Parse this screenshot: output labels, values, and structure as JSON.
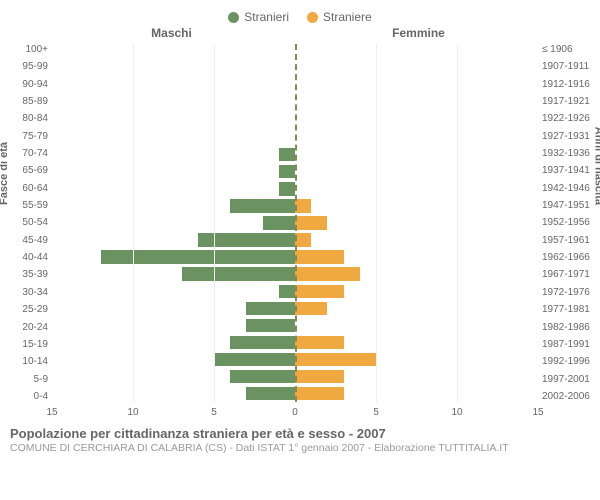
{
  "legend": {
    "male": {
      "label": "Stranieri",
      "color": "#6b9362"
    },
    "female": {
      "label": "Straniere",
      "color": "#f0a840"
    }
  },
  "header": {
    "male": "Maschi",
    "female": "Femmine"
  },
  "yaxis_left": {
    "title": "Fasce di età"
  },
  "yaxis_right": {
    "title": "Anni di nascita"
  },
  "xaxis": {
    "xlim": 15,
    "ticks": [
      15,
      10,
      5,
      0,
      5,
      10,
      15
    ]
  },
  "colors": {
    "male_bar": "#6b9362",
    "female_bar": "#f0a840",
    "grid": "#eeeeee",
    "centerline": "#888855",
    "text": "#666666",
    "subtext": "#999999",
    "bg": "#ffffff"
  },
  "age_bands": [
    {
      "age": "100+",
      "birth": "≤ 1906",
      "m": 0,
      "f": 0
    },
    {
      "age": "95-99",
      "birth": "1907-1911",
      "m": 0,
      "f": 0
    },
    {
      "age": "90-94",
      "birth": "1912-1916",
      "m": 0,
      "f": 0
    },
    {
      "age": "85-89",
      "birth": "1917-1921",
      "m": 0,
      "f": 0
    },
    {
      "age": "80-84",
      "birth": "1922-1926",
      "m": 0,
      "f": 0
    },
    {
      "age": "75-79",
      "birth": "1927-1931",
      "m": 0,
      "f": 0
    },
    {
      "age": "70-74",
      "birth": "1932-1936",
      "m": 1,
      "f": 0
    },
    {
      "age": "65-69",
      "birth": "1937-1941",
      "m": 1,
      "f": 0
    },
    {
      "age": "60-64",
      "birth": "1942-1946",
      "m": 1,
      "f": 0
    },
    {
      "age": "55-59",
      "birth": "1947-1951",
      "m": 4,
      "f": 1
    },
    {
      "age": "50-54",
      "birth": "1952-1956",
      "m": 2,
      "f": 2
    },
    {
      "age": "45-49",
      "birth": "1957-1961",
      "m": 6,
      "f": 1
    },
    {
      "age": "40-44",
      "birth": "1962-1966",
      "m": 12,
      "f": 3
    },
    {
      "age": "35-39",
      "birth": "1967-1971",
      "m": 7,
      "f": 4
    },
    {
      "age": "30-34",
      "birth": "1972-1976",
      "m": 1,
      "f": 3
    },
    {
      "age": "25-29",
      "birth": "1977-1981",
      "m": 3,
      "f": 2
    },
    {
      "age": "20-24",
      "birth": "1982-1986",
      "m": 3,
      "f": 0
    },
    {
      "age": "15-19",
      "birth": "1987-1991",
      "m": 4,
      "f": 3
    },
    {
      "age": "10-14",
      "birth": "1992-1996",
      "m": 5,
      "f": 5
    },
    {
      "age": "5-9",
      "birth": "1997-2001",
      "m": 4,
      "f": 3
    },
    {
      "age": "0-4",
      "birth": "2002-2006",
      "m": 3,
      "f": 3
    }
  ],
  "footer": {
    "title": "Popolazione per cittadinanza straniera per età e sesso - 2007",
    "subtitle": "COMUNE DI CERCHIARA DI CALABRIA (CS) - Dati ISTAT 1° gennaio 2007 - Elaborazione TUTTITALIA.IT"
  }
}
